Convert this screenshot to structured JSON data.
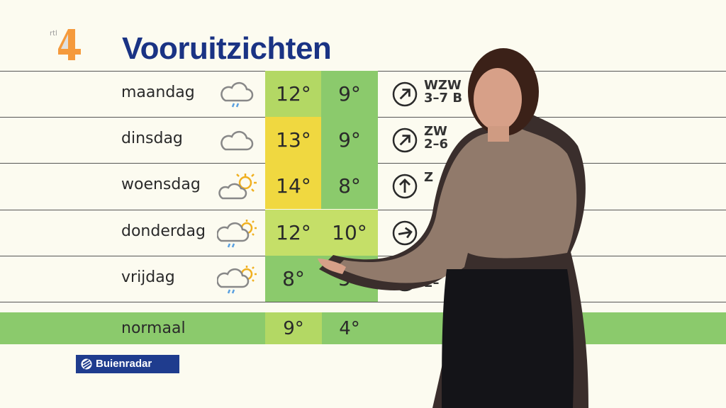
{
  "channel_logo": "rtl 4",
  "title": "Vooruitzichten",
  "colors": {
    "title": "#1a3384",
    "warm": "#f0d840",
    "mild": "#b3d864",
    "cool": "#8bca6c"
  },
  "rows": [
    {
      "day": "maandag",
      "icon": "cloud-rain-icon",
      "max": "12°",
      "min": "9°",
      "max_color": "#b3d864",
      "min_color": "#8bca6c",
      "dir": "arrow-up-right-icon",
      "rot": 45,
      "wind": "WZW\n3–7 B"
    },
    {
      "day": "dinsdag",
      "icon": "cloud-icon",
      "max": "13°",
      "min": "9°",
      "max_color": "#f0d840",
      "min_color": "#8bca6c",
      "dir": "arrow-up-right-icon",
      "rot": 45,
      "wind": "ZW\n2–6"
    },
    {
      "day": "woensdag",
      "icon": "sun-cloud-icon",
      "max": "14°",
      "min": "8°",
      "max_color": "#f0d840",
      "min_color": "#8bca6c",
      "dir": "arrow-up-icon",
      "rot": 0,
      "wind": "Z"
    },
    {
      "day": "donderdag",
      "icon": "sun-cloud-rain-icon",
      "max": "12°",
      "min": "10°",
      "max_color": "#c5df68",
      "min_color": "#c5df68",
      "dir": "arrow-right-icon",
      "rot": 80,
      "wind": ""
    },
    {
      "day": "vrijdag",
      "icon": "sun-cloud-rain-icon",
      "max": "8°",
      "min": "5°",
      "max_color": "#8bca6c",
      "min_color": "#8bca6c",
      "dir": "arrow-down-right-icon",
      "rot": 120,
      "wind": "WN\n2–"
    }
  ],
  "normal": {
    "label": "normaal",
    "max": "9°",
    "min": "4°"
  },
  "brand": "Buienradar"
}
